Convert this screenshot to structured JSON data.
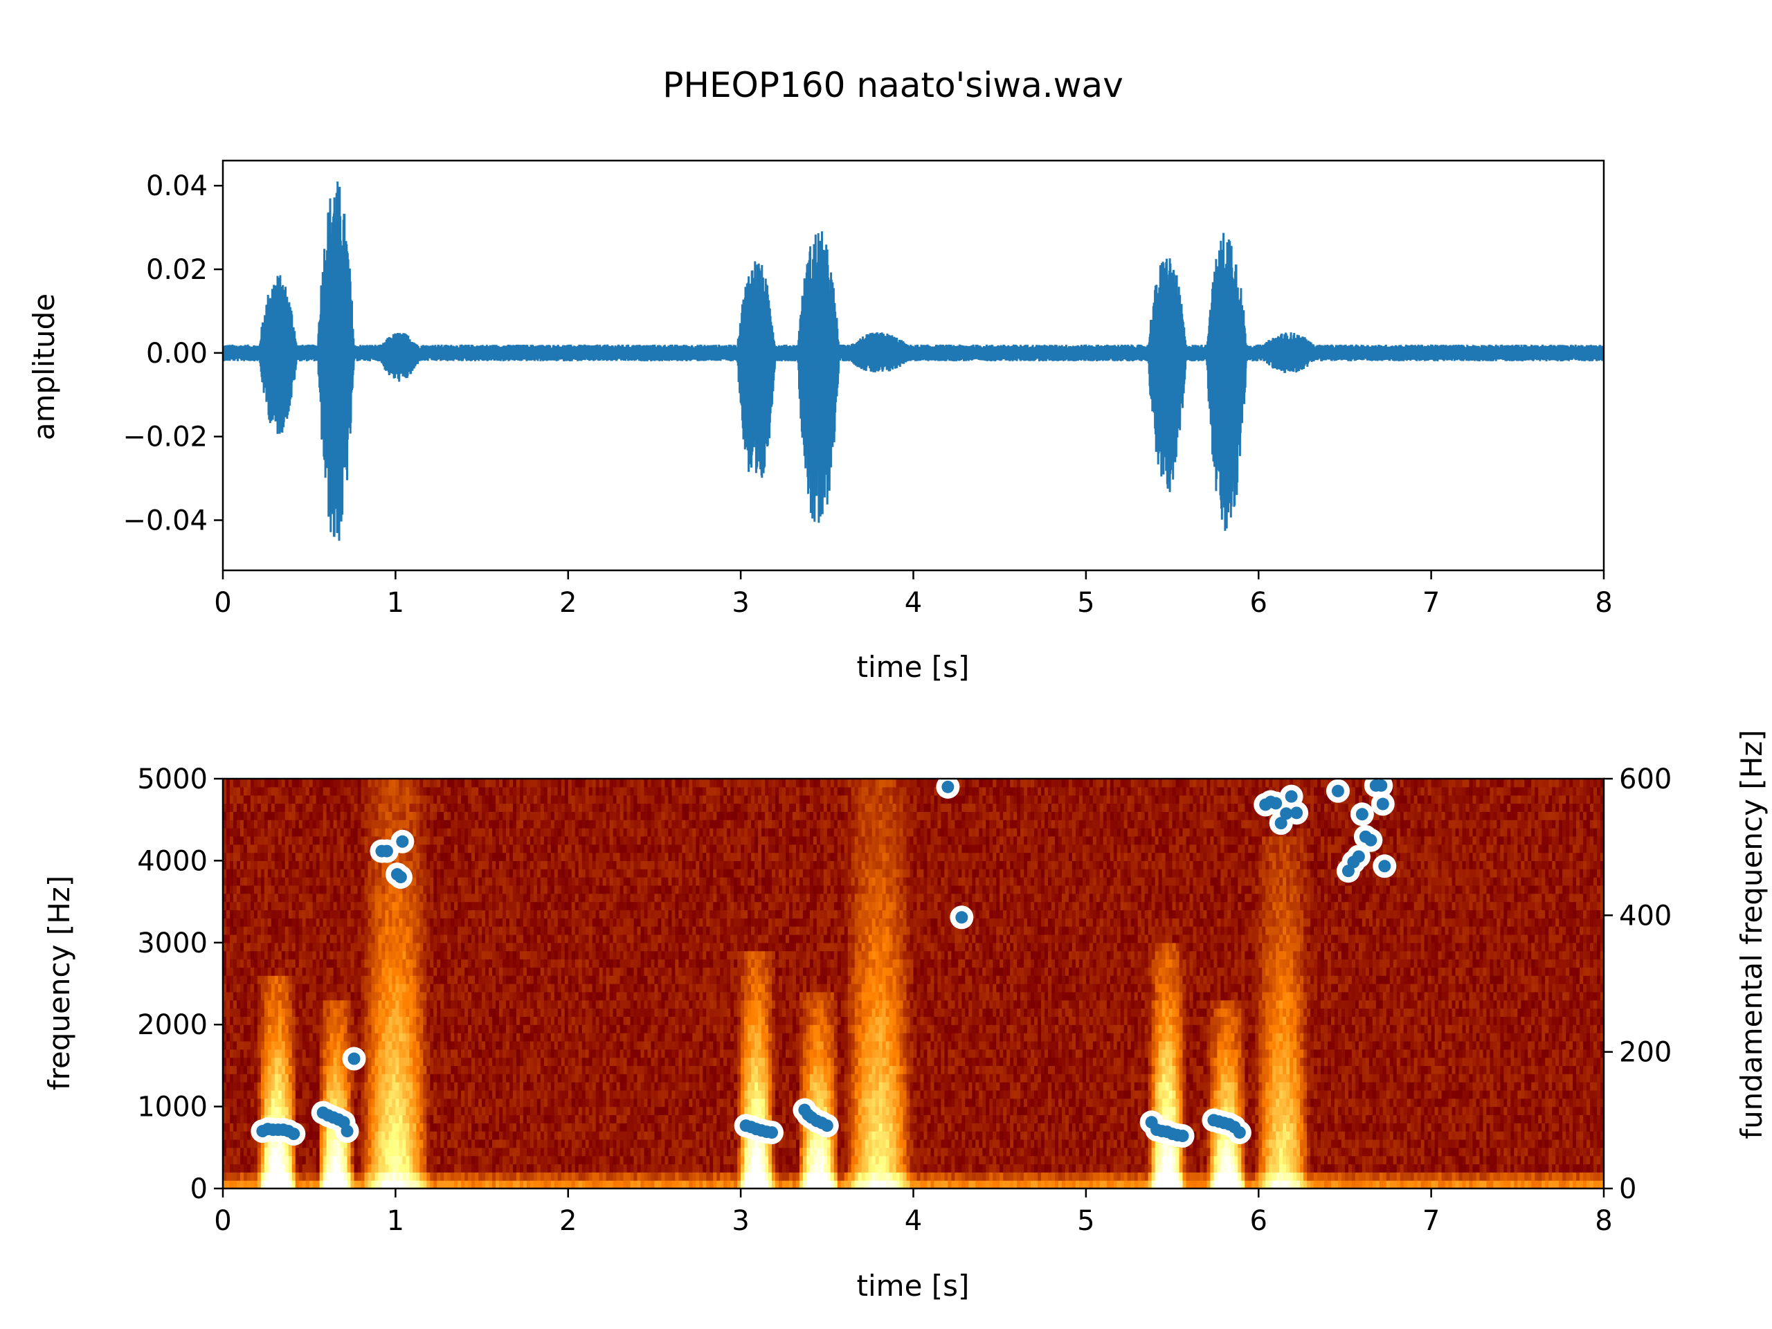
{
  "title": "PHEOP160 naato'siwa.wav",
  "chart_data": [
    {
      "type": "line",
      "name": "waveform",
      "xlabel": "time [s]",
      "ylabel": "amplitude",
      "xlim": [
        0,
        8
      ],
      "ylim": [
        -0.052,
        0.046
      ],
      "xticks": [
        0,
        1,
        2,
        3,
        4,
        5,
        6,
        7,
        8
      ],
      "yticks": [
        -0.04,
        -0.02,
        0.0,
        0.02,
        0.04
      ],
      "ytick_labels": [
        "−0.04",
        "−0.02",
        "0.00",
        "0.02",
        "0.04"
      ],
      "color": "#1f77b4",
      "noise_floor": 0.002,
      "bursts": [
        {
          "start": 0.21,
          "end": 0.43,
          "peak": 0.019,
          "min": -0.02
        },
        {
          "start": 0.55,
          "end": 0.76,
          "peak": 0.042,
          "min": -0.047
        },
        {
          "start": 0.9,
          "end": 1.15,
          "peak": 0.005,
          "min": -0.007
        },
        {
          "start": 2.98,
          "end": 3.2,
          "peak": 0.023,
          "min": -0.035
        },
        {
          "start": 3.33,
          "end": 3.57,
          "peak": 0.03,
          "min": -0.044
        },
        {
          "start": 3.6,
          "end": 4.0,
          "peak": 0.005,
          "min": -0.005
        },
        {
          "start": 5.36,
          "end": 5.58,
          "peak": 0.024,
          "min": -0.034
        },
        {
          "start": 5.7,
          "end": 5.93,
          "peak": 0.03,
          "min": -0.045
        },
        {
          "start": 6.0,
          "end": 6.35,
          "peak": 0.005,
          "min": -0.005
        }
      ]
    },
    {
      "type": "heatmap",
      "name": "spectrogram",
      "xlabel": "time [s]",
      "ylabel": "frequency [Hz]",
      "y2label": "fundamental frequency [Hz]",
      "xlim": [
        0,
        8
      ],
      "ylim": [
        0,
        5000
      ],
      "y2lim": [
        0,
        600
      ],
      "xticks": [
        0,
        1,
        2,
        3,
        4,
        5,
        6,
        7,
        8
      ],
      "yticks": [
        0,
        1000,
        2000,
        3000,
        4000,
        5000
      ],
      "y2ticks": [
        0,
        200,
        400,
        600
      ],
      "colormap": "afmhot",
      "energy_regions": [
        {
          "start": 0.2,
          "end": 0.43,
          "fmax": 2600,
          "strength": 1.0
        },
        {
          "start": 0.55,
          "end": 0.76,
          "fmax": 2300,
          "strength": 0.95
        },
        {
          "start": 0.8,
          "end": 1.2,
          "fmax": 5000,
          "strength": 0.6
        },
        {
          "start": 2.98,
          "end": 3.2,
          "fmax": 2900,
          "strength": 0.95
        },
        {
          "start": 3.33,
          "end": 3.57,
          "fmax": 2400,
          "strength": 0.9
        },
        {
          "start": 3.6,
          "end": 4.0,
          "fmax": 5000,
          "strength": 0.55
        },
        {
          "start": 5.36,
          "end": 5.58,
          "fmax": 3000,
          "strength": 0.95
        },
        {
          "start": 5.7,
          "end": 5.93,
          "fmax": 2300,
          "strength": 0.9
        },
        {
          "start": 5.98,
          "end": 6.3,
          "fmax": 4300,
          "strength": 0.55
        }
      ],
      "f0_points": {
        "color": "#1f77b4",
        "t": [
          0.23,
          0.26,
          0.29,
          0.32,
          0.35,
          0.38,
          0.41,
          0.58,
          0.61,
          0.64,
          0.67,
          0.7,
          0.72,
          0.76,
          0.92,
          0.95,
          1.01,
          1.03,
          1.04,
          3.03,
          3.06,
          3.09,
          3.12,
          3.15,
          3.18,
          3.37,
          3.39,
          3.41,
          3.44,
          3.47,
          3.5,
          4.2,
          4.28,
          5.38,
          5.41,
          5.44,
          5.47,
          5.5,
          5.53,
          5.56,
          5.74,
          5.77,
          5.8,
          5.83,
          5.86,
          5.89,
          6.04,
          6.07,
          6.1,
          6.13,
          6.16,
          6.19,
          6.22,
          6.46,
          6.52,
          6.55,
          6.58,
          6.6,
          6.62,
          6.65,
          6.68,
          6.71,
          6.72,
          6.73
        ],
        "f0": [
          84,
          87,
          86,
          86,
          86,
          84,
          80,
          111,
          107,
          104,
          101,
          97,
          84,
          190,
          494,
          494,
          460,
          456,
          508,
          92,
          90,
          87,
          85,
          83,
          82,
          115,
          108,
          104,
          99,
          96,
          92,
          588,
          397,
          97,
          86,
          84,
          83,
          80,
          78,
          77,
          100,
          98,
          96,
          94,
          90,
          82,
          562,
          566,
          564,
          535,
          549,
          574,
          550,
          582,
          465,
          478,
          486,
          548,
          515,
          510,
          590,
          590,
          563,
          472
        ]
      }
    }
  ]
}
